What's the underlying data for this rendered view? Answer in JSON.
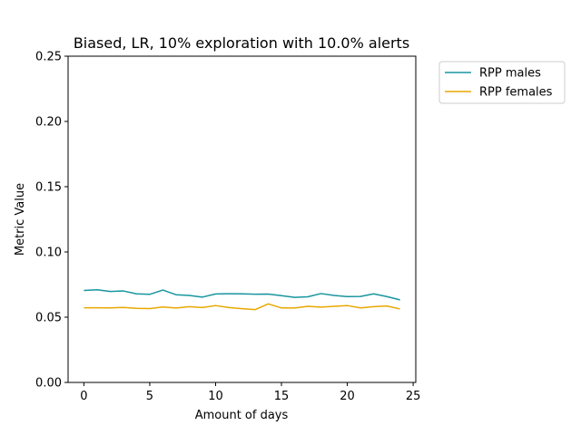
{
  "chart_data": {
    "type": "line",
    "title": "Biased, LR, 10% exploration with 10.0% alerts",
    "xlabel": "Amount of days",
    "ylabel": "Metric Value",
    "xlim": [
      -1.2,
      25.2
    ],
    "ylim": [
      0.0,
      0.25
    ],
    "xticks": [
      0,
      5,
      10,
      15,
      20,
      25
    ],
    "xtick_labels": [
      "0",
      "5",
      "10",
      "15",
      "20",
      "25"
    ],
    "yticks": [
      0.0,
      0.05,
      0.1,
      0.15,
      0.2,
      0.25
    ],
    "ytick_labels": [
      "0.00",
      "0.05",
      "0.10",
      "0.15",
      "0.20",
      "0.25"
    ],
    "grid": false,
    "legend_position": "outside-top-right",
    "x": [
      0,
      1,
      2,
      3,
      4,
      5,
      6,
      7,
      8,
      9,
      10,
      11,
      12,
      13,
      14,
      15,
      16,
      17,
      18,
      19,
      20,
      21,
      22,
      23,
      24
    ],
    "series": [
      {
        "name": "RPP males",
        "color": "#17959f",
        "values": [
          0.0705,
          0.071,
          0.0697,
          0.0701,
          0.0679,
          0.0675,
          0.0708,
          0.0672,
          0.0667,
          0.0654,
          0.0678,
          0.068,
          0.0679,
          0.0676,
          0.0677,
          0.0665,
          0.0652,
          0.0656,
          0.0681,
          0.0667,
          0.0658,
          0.0659,
          0.0679,
          0.0658,
          0.0633
        ]
      },
      {
        "name": "RPP females",
        "color": "#e8a800",
        "values": [
          0.0572,
          0.0572,
          0.0571,
          0.0575,
          0.0568,
          0.0566,
          0.0578,
          0.057,
          0.0581,
          0.0574,
          0.0589,
          0.0574,
          0.0565,
          0.0558,
          0.0602,
          0.0571,
          0.057,
          0.0583,
          0.0577,
          0.0583,
          0.0589,
          0.0571,
          0.0581,
          0.0586,
          0.0563
        ]
      }
    ]
  }
}
